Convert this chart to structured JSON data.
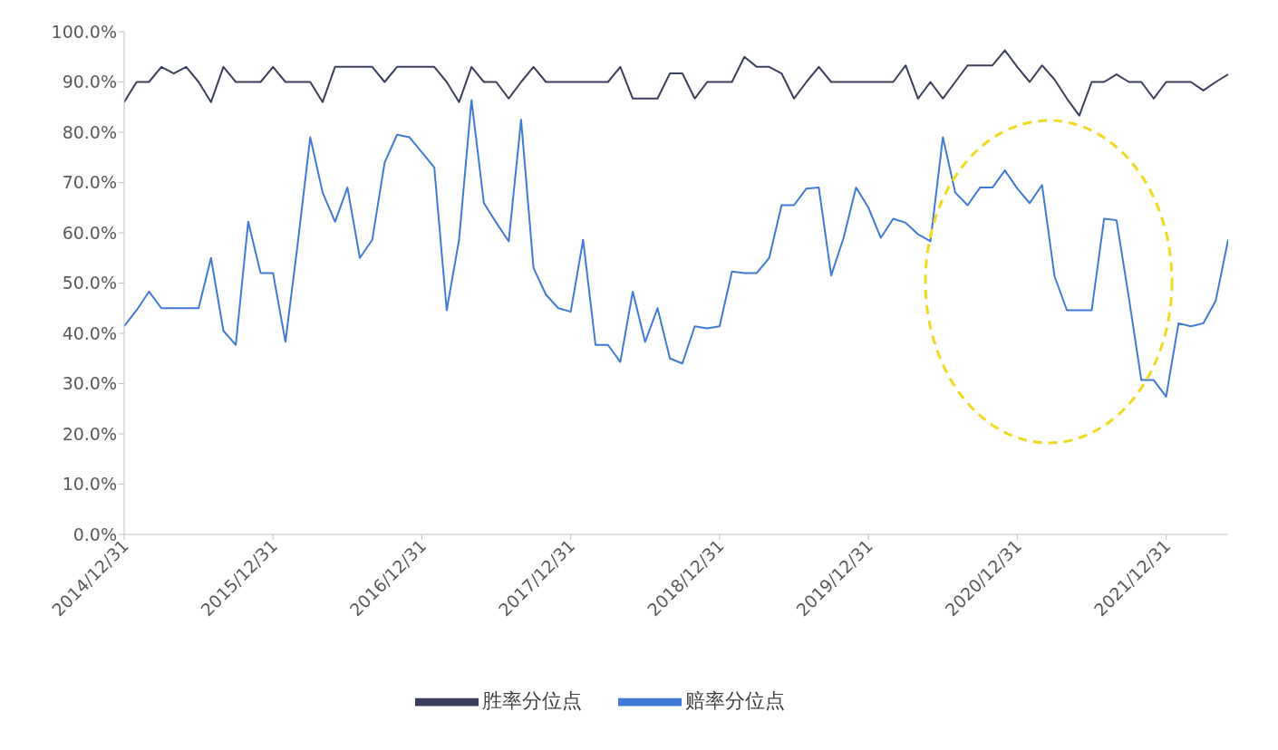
{
  "chart_data": {
    "type": "line",
    "categories": [
      "2014/12/31",
      null,
      null,
      null,
      null,
      null,
      null,
      null,
      null,
      null,
      null,
      null,
      "2015/12/31",
      null,
      null,
      null,
      null,
      null,
      null,
      null,
      null,
      null,
      null,
      null,
      "2016/12/31",
      null,
      null,
      null,
      null,
      null,
      null,
      null,
      null,
      null,
      null,
      null,
      "2017/12/31",
      null,
      null,
      null,
      null,
      null,
      null,
      null,
      null,
      null,
      null,
      null,
      "2018/12/31",
      null,
      null,
      null,
      null,
      null,
      null,
      null,
      null,
      null,
      null,
      null,
      "2019/12/31",
      null,
      null,
      null,
      null,
      null,
      null,
      null,
      null,
      null,
      null,
      null,
      "2020/12/31",
      null,
      null,
      null,
      null,
      null,
      null,
      null,
      null,
      null,
      null,
      null,
      "2021/12/31",
      null,
      null,
      null,
      null,
      null
    ],
    "series": [
      {
        "name": "胜率分位点",
        "color": "#3b3f5e",
        "values": [
          86,
          90,
          90,
          93,
          91.7,
          93,
          90,
          86,
          93,
          90,
          90,
          90,
          93,
          90,
          90,
          90,
          86,
          93,
          93,
          93,
          93,
          90,
          93,
          93,
          93,
          93,
          90,
          86,
          93,
          90,
          90,
          86.7,
          90,
          93,
          90,
          90,
          90,
          90,
          90,
          90,
          93,
          86.7,
          86.7,
          86.7,
          91.7,
          91.7,
          86.7,
          90,
          90,
          90,
          95,
          93,
          93,
          91.7,
          86.7,
          90,
          93,
          90,
          90,
          90,
          90,
          90,
          90,
          93.3,
          86.7,
          90,
          86.7,
          90,
          93.3,
          93.3,
          93.3,
          96.3,
          93,
          90,
          93.3,
          90.5,
          86.7,
          83.3,
          90,
          90,
          91.5,
          90,
          90,
          86.7,
          90,
          90,
          90,
          88.3,
          90,
          91.5
        ]
      },
      {
        "name": "赔率分位点",
        "color": "#3f7ad6",
        "values": [
          41.4,
          44.6,
          48.3,
          45,
          45,
          45,
          45,
          55,
          40.5,
          37.7,
          62.2,
          52,
          52,
          38.3,
          58,
          79,
          68,
          62.2,
          69,
          55,
          58.6,
          74,
          79.5,
          79,
          76,
          73,
          44.6,
          58.6,
          86.4,
          65.9,
          62,
          58.3,
          82.5,
          53,
          47.7,
          45,
          44.3,
          58.6,
          37.7,
          37.7,
          34.3,
          48.3,
          38.3,
          45,
          35,
          34,
          41.4,
          41,
          41.4,
          52.3,
          52,
          52,
          55,
          65.5,
          65.5,
          68.8,
          69,
          51.5,
          59,
          69,
          65,
          59,
          62.8,
          62,
          59.7,
          58.3,
          79,
          68,
          65.5,
          69,
          69,
          72.4,
          68.8,
          65.9,
          69.5,
          51.4,
          44.6,
          44.6,
          44.6,
          62.8,
          62.5,
          47,
          30.7,
          30.7,
          27.4,
          42,
          41.4,
          42,
          46.5,
          58.6
        ]
      }
    ],
    "ylim": [
      0,
      100
    ],
    "yticks": [
      {
        "value": 0,
        "label": "0.0%"
      },
      {
        "value": 10,
        "label": "10.0%"
      },
      {
        "value": 20,
        "label": "20.0%"
      },
      {
        "value": 30,
        "label": "30.0%"
      },
      {
        "value": 40,
        "label": "40.0%"
      },
      {
        "value": 50,
        "label": "50.0%"
      },
      {
        "value": 60,
        "label": "60.0%"
      },
      {
        "value": 70,
        "label": "70.0%"
      },
      {
        "value": 80,
        "label": "80.0%"
      },
      {
        "value": 90,
        "label": "90.0%"
      },
      {
        "value": 100,
        "label": "100.0%"
      }
    ],
    "grid": false,
    "legend": "bottom",
    "marker": "none",
    "line_style": "solid"
  }
}
